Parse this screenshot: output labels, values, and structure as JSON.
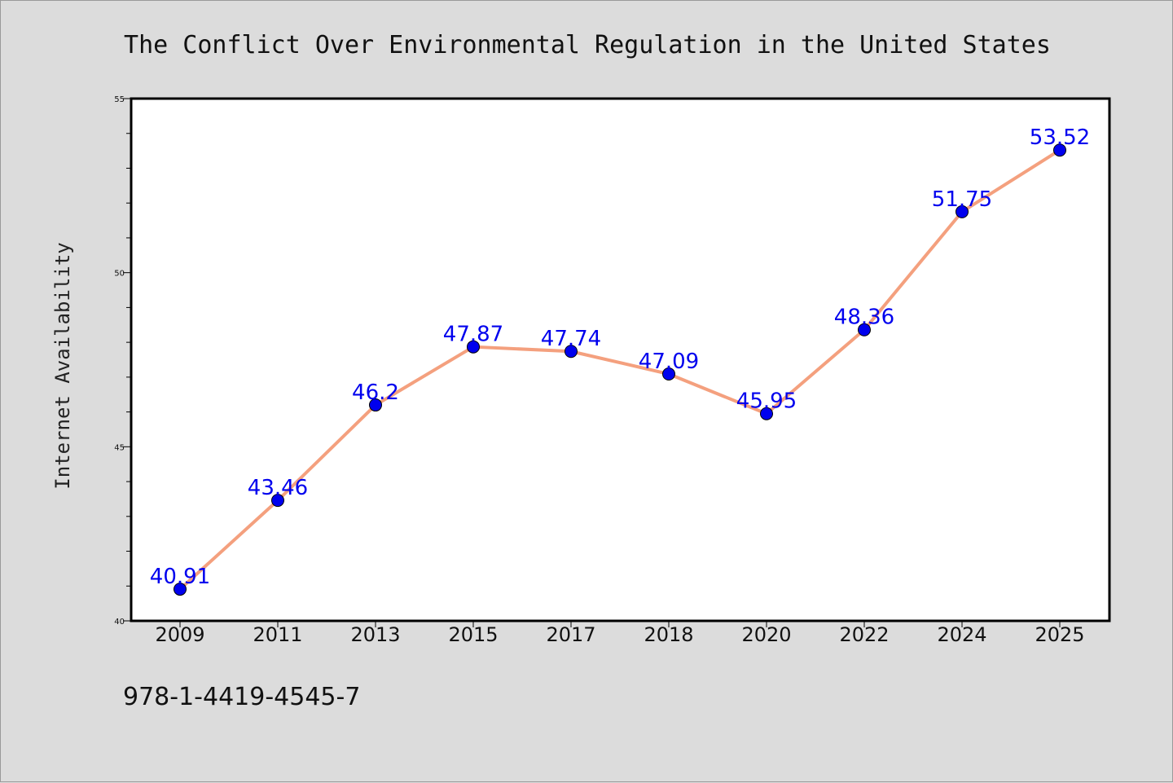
{
  "chart_data": {
    "type": "line",
    "title": "The Conflict Over Environmental Regulation in the United States",
    "ylabel": "Internet Availability",
    "xlabel": "",
    "categories": [
      "2009",
      "2011",
      "2013",
      "2015",
      "2017",
      "2018",
      "2020",
      "2022",
      "2024",
      "2025"
    ],
    "series": [
      {
        "values": [
          40.91,
          43.46,
          46.2,
          47.87,
          47.74,
          47.09,
          45.95,
          48.36,
          51.75,
          53.52
        ],
        "labels": [
          "40.91",
          "43.46",
          "46.2",
          "47.87",
          "47.74",
          "47.09",
          "45.95",
          "48.36",
          "51.75",
          "53.52"
        ]
      }
    ],
    "ylim": [
      40,
      55
    ],
    "yticks": [
      "40",
      "45",
      "50",
      "55"
    ],
    "grid": false,
    "line_color": "#f4a07e",
    "marker_color": "#0000ee",
    "label_color": "#0000ee"
  },
  "footer": {
    "isbn": "978-1-4419-4545-7"
  }
}
